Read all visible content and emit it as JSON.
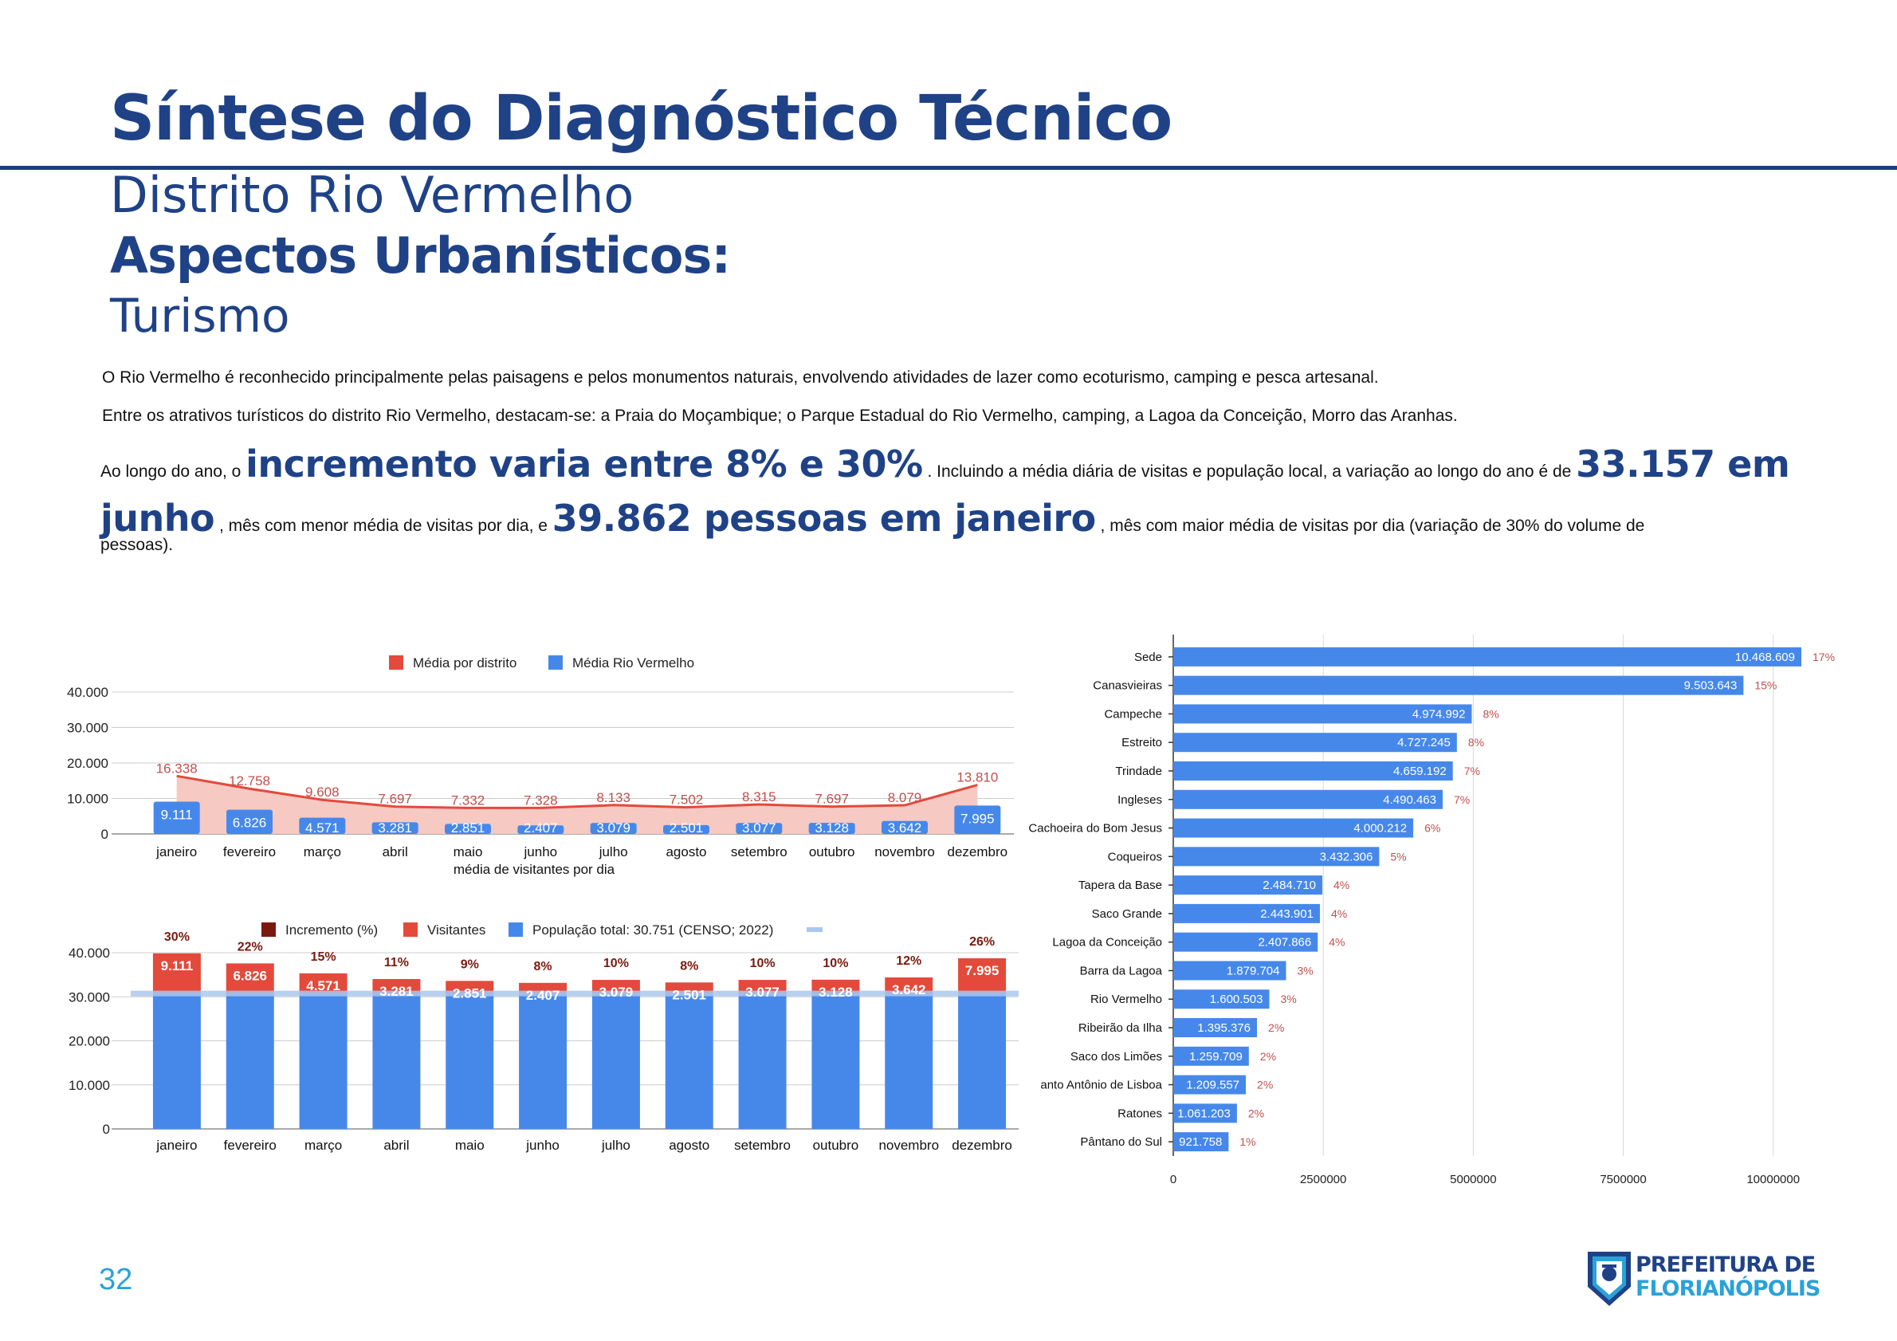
{
  "header": {
    "title": "Síntese do Diagnóstico Técnico",
    "subtitle": "Distrito Rio Vermelho",
    "section": "Aspectos Urbanísticos:",
    "topic": "Turismo"
  },
  "body": {
    "p1": "O Rio Vermelho é reconhecido principalmente pelas paisagens e pelos monumentos naturais, envolvendo atividades de lazer como ecoturismo, camping e pesca artesanal.",
    "p2": "Entre os atrativos turísticos do distrito Rio Vermelho, destacam-se: a Praia do Moçambique; o Parque Estadual do Rio Vermelho, camping, a Lagoa da Conceição, Morro das Aranhas.",
    "p3_a": " Ao longo do ano, o ",
    "p3_b": "incremento varia entre 8% e 30%",
    "p3_c": "   . Incluindo a média diária de visitas e população local, a variação ao longo do ano é de ",
    "p3_d": "33.157 em junho",
    "p3_e": " , mês com menor média de visitas por dia, e ",
    "p3_f": "39.862 pessoas em janeiro",
    "p3_g": "   , mês com maior média de visitas por dia (variação de 30% do volume de",
    "p3_tail": "pessoas)."
  },
  "footer": {
    "page_number": "32",
    "logo_line1": "PREFEITURA DE",
    "logo_line2": "FLORIANÓPOLIS"
  },
  "colors": {
    "brand": "#1f4287",
    "accent": "#2aa2d8",
    "red": "#e34a3b",
    "blue": "#4688ea",
    "pink": "#f6c9c3",
    "dark_red": "#7a1a0f",
    "label_red": "#c0504d"
  },
  "chart_data": [
    {
      "type": "area",
      "title": "",
      "xlabel": "média de visitantes por dia",
      "ylabel": "",
      "ylim": [
        0,
        40000
      ],
      "yticks": [
        "0",
        "10.000",
        "20.000",
        "30.000",
        "40.000"
      ],
      "categories": [
        "janeiro",
        "fevereiro",
        "março",
        "abril",
        "maio",
        "junho",
        "julho",
        "agosto",
        "setembro",
        "outubro",
        "novembro",
        "dezembro"
      ],
      "series": [
        {
          "name": "Média por distrito",
          "values": [
            16338,
            12758,
            9608,
            7697,
            7332,
            7328,
            8133,
            7502,
            8315,
            7697,
            8079,
            13810
          ],
          "labels": [
            "16.338",
            "12.758",
            "9.608",
            "7.697",
            "7.332",
            "7.328",
            "8.133",
            "7.502",
            "8.315",
            "7.697",
            "8.079",
            "13.810"
          ]
        },
        {
          "name": "Média Rio Vermelho",
          "values": [
            9111,
            6826,
            4571,
            3281,
            2851,
            2407,
            3079,
            2501,
            3077,
            3128,
            3642,
            7995
          ],
          "labels": [
            "9.111",
            "6.826",
            "4.571",
            "3.281",
            "2.851",
            "2.407",
            "3.079",
            "2.501",
            "3.077",
            "3.128",
            "3.642",
            "7.995"
          ]
        }
      ]
    },
    {
      "type": "bar",
      "stacked": true,
      "ylim": [
        0,
        40000
      ],
      "yticks": [
        "0",
        "10.000",
        "20.000",
        "30.000",
        "40.000"
      ],
      "categories": [
        "janeiro",
        "fevereiro",
        "março",
        "abril",
        "maio",
        "junho",
        "julho",
        "agosto",
        "setembro",
        "outubro",
        "novembro",
        "dezembro"
      ],
      "population_label": "População total: 30.751 (CENSO; 2022)",
      "population": 30751,
      "series": [
        {
          "name": "Incremento (%)",
          "labels": [
            "30%",
            "22%",
            "15%",
            "11%",
            "9%",
            "8%",
            "10%",
            "8%",
            "10%",
            "10%",
            "12%",
            "26%"
          ]
        },
        {
          "name": "Visitantes",
          "values": [
            9111,
            6826,
            4571,
            3281,
            2851,
            2407,
            3079,
            2501,
            3077,
            3128,
            3642,
            7995
          ],
          "labels": [
            "9.111",
            "6.826",
            "4.571",
            "3.281",
            "2.851",
            "2.407",
            "3.079",
            "2.501",
            "3.077",
            "3.128",
            "3.642",
            "7.995"
          ]
        },
        {
          "name": "População total: 30.751 (CENSO; 2022)",
          "values": [
            30751,
            30751,
            30751,
            30751,
            30751,
            30751,
            30751,
            30751,
            30751,
            30751,
            30751,
            30751
          ]
        }
      ]
    },
    {
      "type": "bar",
      "orientation": "horizontal",
      "xlim": [
        0,
        11000000
      ],
      "xticks": [
        "0",
        "2500000",
        "5000000",
        "7500000",
        "10000000"
      ],
      "xtick_values": [
        0,
        2500000,
        5000000,
        7500000,
        10000000
      ],
      "categories": [
        "Sede",
        "Canasvieiras",
        "Campeche",
        "Estreito",
        "Trindade",
        "Ingleses",
        "Cachoeira do Bom Jesus",
        "Coqueiros",
        "Tapera da Base",
        "Saco Grande",
        "Lagoa da Conceição",
        "Barra da Lagoa",
        "Rio Vermelho",
        "Ribeirão da Ilha",
        "Saco dos Limões",
        "anto Antônio de Lisboa",
        "Ratones",
        "Pântano do Sul"
      ],
      "values": [
        10468609,
        9503643,
        4974992,
        4727245,
        4659192,
        4490463,
        4000212,
        3432306,
        2484710,
        2443901,
        2407866,
        1879704,
        1600503,
        1395376,
        1259709,
        1209557,
        1061203,
        921758
      ],
      "labels": [
        "10.468.609",
        "9.503.643",
        "4.974.992",
        "4.727.245",
        "4.659.192",
        "4.490.463",
        "4.000.212",
        "3.432.306",
        "2.484.710",
        "2.443.901",
        "2.407.866",
        "1.879.704",
        "1.600.503",
        "1.395.376",
        "1.259.709",
        "1.209.557",
        "1.061.203",
        "921.758"
      ],
      "percents": [
        "17%",
        "15%",
        "8%",
        "8%",
        "7%",
        "7%",
        "6%",
        "5%",
        "4%",
        "4%",
        "4%",
        "3%",
        "3%",
        "2%",
        "2%",
        "2%",
        "2%",
        "1%"
      ]
    }
  ]
}
